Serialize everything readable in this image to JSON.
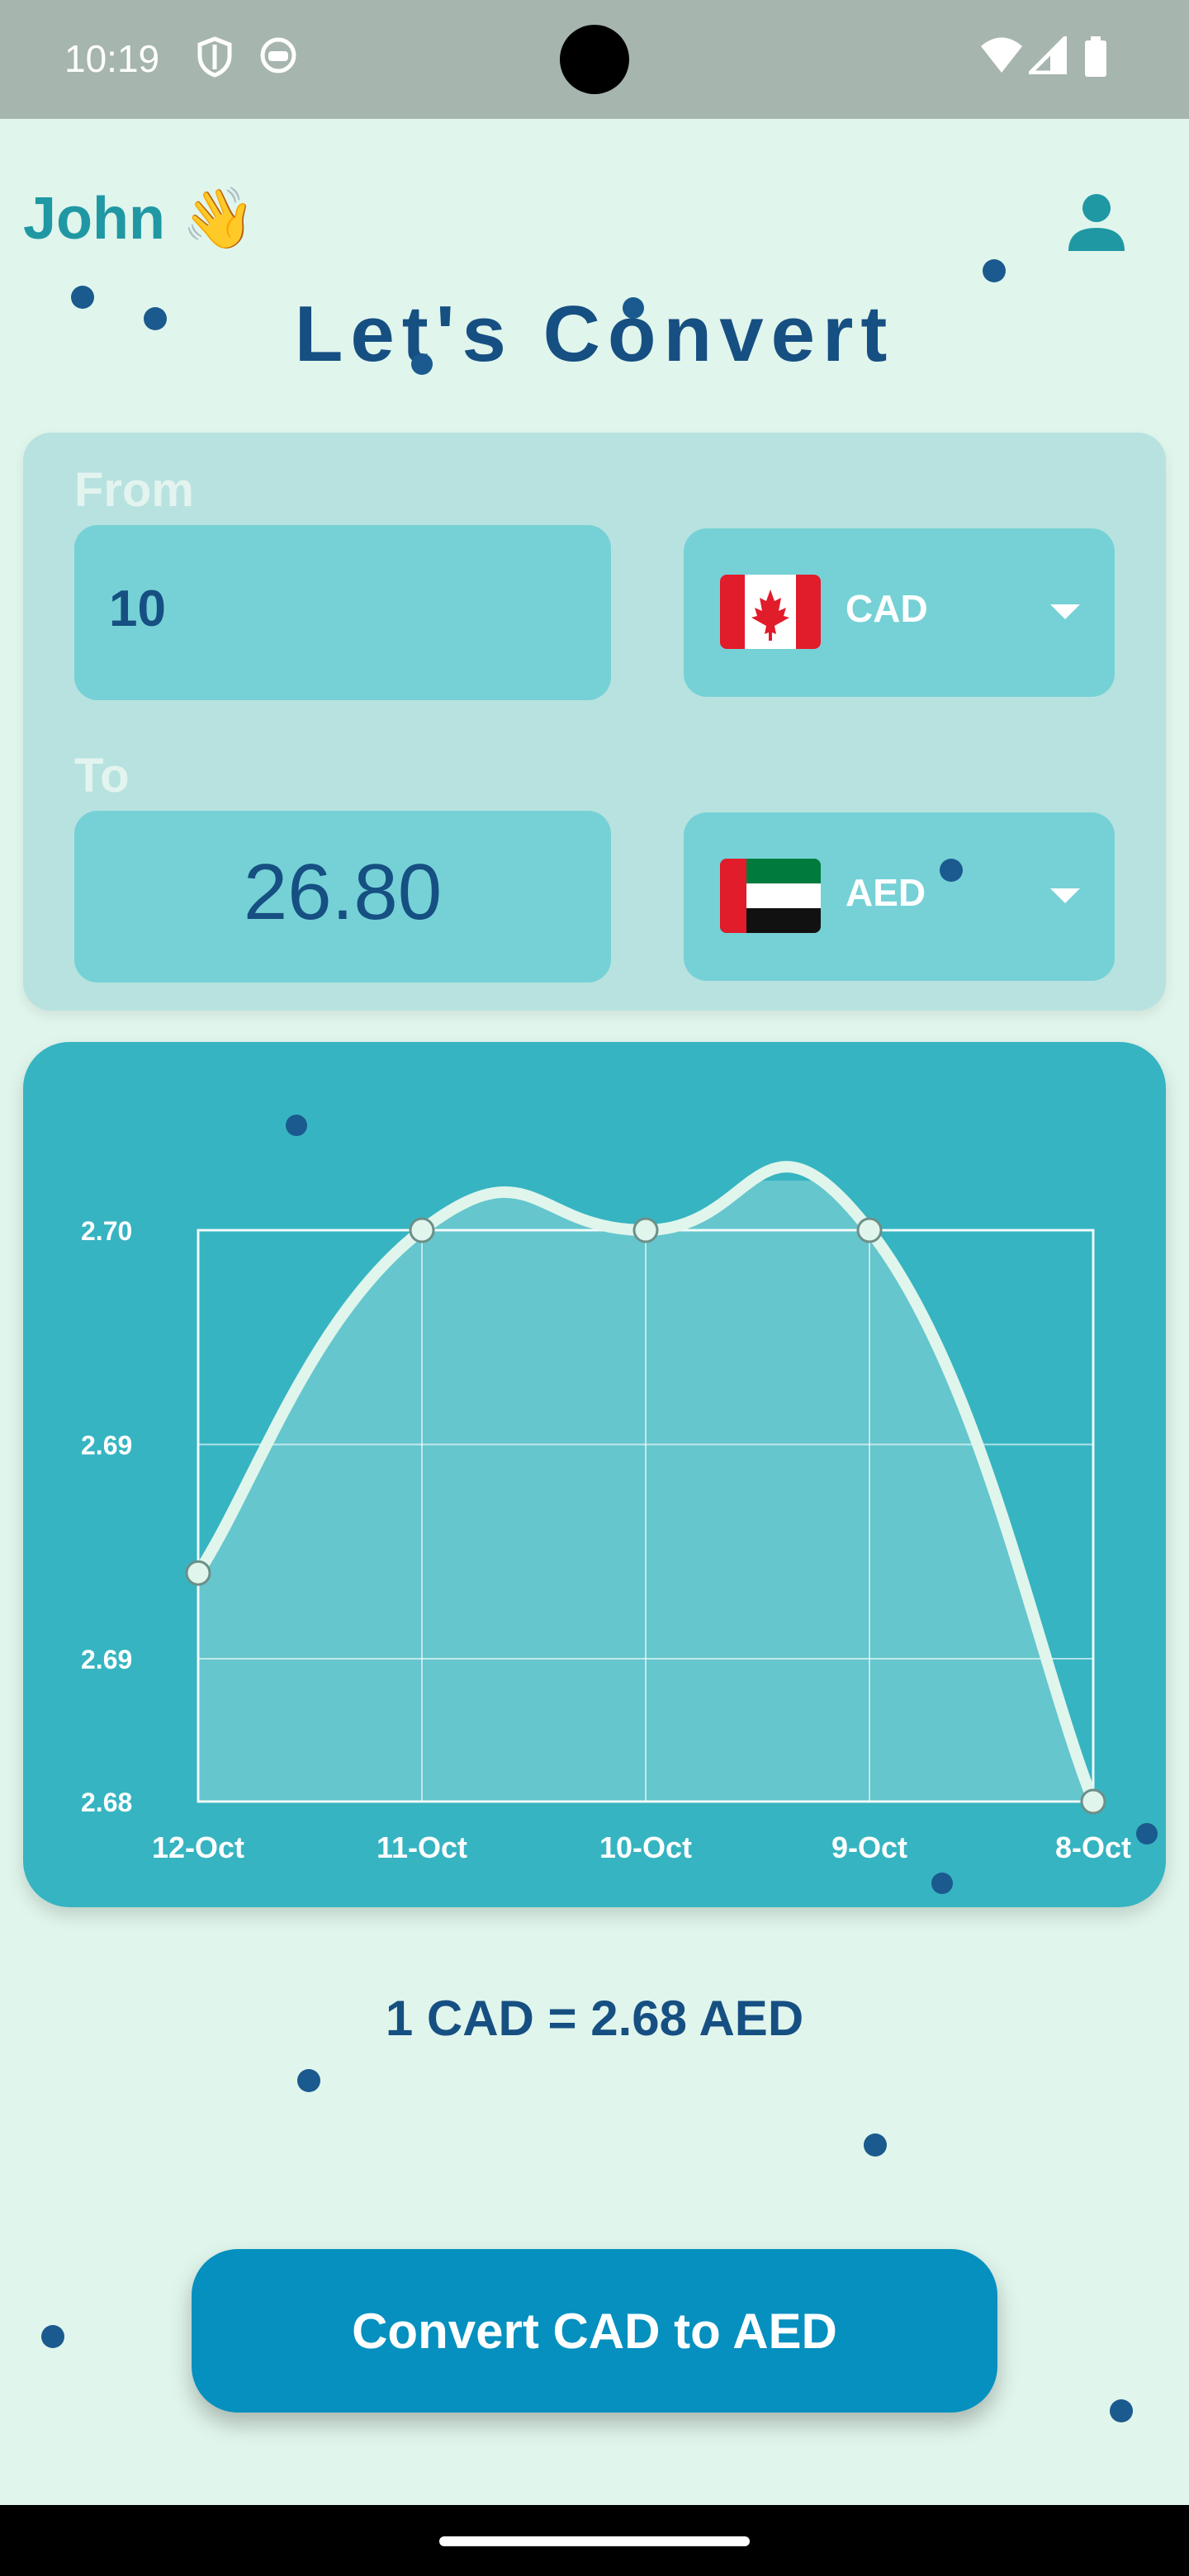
{
  "status_bar": {
    "time": "10:19"
  },
  "header": {
    "greeting": "John 👋",
    "title": "Let's Convert"
  },
  "from": {
    "label": "From",
    "amount": "10",
    "currency": "CAD"
  },
  "to": {
    "label": "To",
    "amount": "26.80",
    "currency": "AED"
  },
  "icons": {
    "status_left": [
      "shield-icon",
      "robot-face-icon"
    ],
    "status_right": [
      "wifi-icon",
      "cell-signal-icon",
      "battery-icon"
    ],
    "profile": "person-icon",
    "from_flag": "canada-flag-icon",
    "to_flag": "uae-flag-icon",
    "dropdown": "caret-down-icon"
  },
  "chart_data": {
    "type": "line",
    "categories": [
      "12-Oct",
      "11-Oct",
      "10-Oct",
      "9-Oct",
      "8-Oct"
    ],
    "values": [
      2.688,
      2.7,
      2.7,
      2.7,
      2.68
    ],
    "y_tick_labels": [
      "2.70",
      "2.69",
      "2.69",
      "2.68"
    ],
    "ylim": [
      2.68,
      2.7
    ],
    "grid": true,
    "smooth": true,
    "filled": true
  },
  "rate_text": "1 CAD = 2.68 AED",
  "convert_button": {
    "label": "Convert CAD to AED"
  },
  "colors": {
    "background": "#e0f5ec",
    "title": "#164f82",
    "greeting": "#1f98a4",
    "panel": "#b7e2e0",
    "field": "#75d1d6",
    "chart_card": "#36b4c1",
    "line": "#e0f5ec",
    "button": "#0590bf"
  }
}
